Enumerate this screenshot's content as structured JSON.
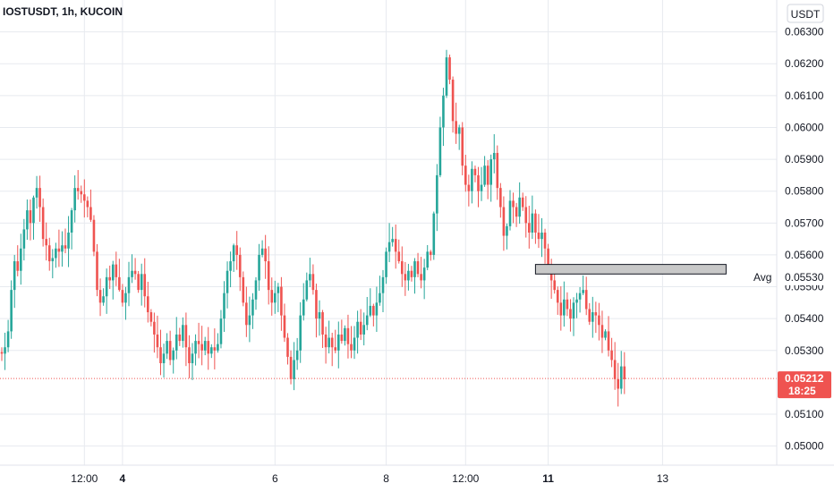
{
  "chart_data": {
    "type": "candlestick",
    "title": "IOSTUSDT, 1h, KUCOIN",
    "currency": "USDT",
    "ylim": [
      0.0494,
      0.064
    ],
    "y_ticks": [
      "0.06300",
      "0.06200",
      "0.06100",
      "0.06000",
      "0.05900",
      "0.05800",
      "0.05700",
      "0.05600",
      "0.05500",
      "0.05400",
      "0.05300",
      "0.05100",
      "0.05000"
    ],
    "x_ticks": [
      {
        "label": "12:00",
        "bold": false,
        "index": 26
      },
      {
        "label": "4",
        "bold": true,
        "index": 38
      },
      {
        "label": "6",
        "bold": false,
        "index": 86
      },
      {
        "label": "8",
        "bold": false,
        "index": 121
      },
      {
        "label": "12:00",
        "bold": false,
        "index": 146
      },
      {
        "label": "11",
        "bold": true,
        "index": 172
      },
      {
        "label": "13",
        "bold": false,
        "index": 208
      }
    ],
    "colors": {
      "up": "#26a69a",
      "down": "#ef5350",
      "grid": "#e7eaef",
      "price_line": "#ef5350",
      "avg_box": "#9e9e9e"
    },
    "closes": [
      0.0529,
      0.0531,
      0.0536,
      0.0549,
      0.0558,
      0.0555,
      0.0562,
      0.0568,
      0.0574,
      0.057,
      0.0578,
      0.0581,
      0.0575,
      0.0565,
      0.0563,
      0.0558,
      0.0559,
      0.0562,
      0.0561,
      0.0563,
      0.0562,
      0.0567,
      0.0574,
      0.0581,
      0.058,
      0.0579,
      0.0577,
      0.0575,
      0.0571,
      0.0561,
      0.0549,
      0.0545,
      0.0547,
      0.0553,
      0.0552,
      0.0557,
      0.0553,
      0.0549,
      0.0545,
      0.0548,
      0.0553,
      0.0555,
      0.0554,
      0.0549,
      0.0554,
      0.0547,
      0.0542,
      0.0539,
      0.0535,
      0.0531,
      0.0526,
      0.0529,
      0.0533,
      0.0527,
      0.053,
      0.0535,
      0.0533,
      0.0538,
      0.0531,
      0.0526,
      0.0529,
      0.0533,
      0.0532,
      0.053,
      0.0533,
      0.0529,
      0.0531,
      0.053,
      0.0532,
      0.054,
      0.0548,
      0.0555,
      0.0558,
      0.0563,
      0.056,
      0.0553,
      0.0545,
      0.0538,
      0.0541,
      0.0546,
      0.0552,
      0.056,
      0.0562,
      0.0558,
      0.0549,
      0.0545,
      0.0548,
      0.055,
      0.0541,
      0.0534,
      0.0528,
      0.0521,
      0.0527,
      0.053,
      0.0541,
      0.0546,
      0.0552,
      0.0554,
      0.0549,
      0.054,
      0.0542,
      0.0535,
      0.0531,
      0.0534,
      0.0531,
      0.053,
      0.0535,
      0.0533,
      0.0537,
      0.0532,
      0.053,
      0.0534,
      0.0539,
      0.0535,
      0.0538,
      0.0541,
      0.0544,
      0.0541,
      0.0545,
      0.0548,
      0.0553,
      0.0561,
      0.0564,
      0.0565,
      0.0561,
      0.0558,
      0.0554,
      0.0552,
      0.0555,
      0.0553,
      0.0558,
      0.0554,
      0.0552,
      0.0556,
      0.0561,
      0.056,
      0.0573,
      0.0585,
      0.06,
      0.061,
      0.0622,
      0.0615,
      0.0602,
      0.0598,
      0.06,
      0.0588,
      0.0582,
      0.058,
      0.0587,
      0.0585,
      0.058,
      0.0582,
      0.0588,
      0.0582,
      0.059,
      0.0592,
      0.0581,
      0.0575,
      0.0566,
      0.0569,
      0.0577,
      0.0575,
      0.0572,
      0.0578,
      0.0575,
      0.057,
      0.0567,
      0.0573,
      0.0567,
      0.0565,
      0.0567,
      0.0562,
      0.0556,
      0.0552,
      0.0549,
      0.0545,
      0.0541,
      0.0546,
      0.0543,
      0.054,
      0.0545,
      0.0546,
      0.0548,
      0.0549,
      0.0543,
      0.0539,
      0.0542,
      0.0541,
      0.0538,
      0.0534,
      0.0536,
      0.053,
      0.0527,
      0.0521,
      0.0518,
      0.0525,
      0.0521
    ],
    "last_price": "0.05212",
    "countdown": "18:25",
    "avg_label": "Avg",
    "avg_price": "0.05530",
    "avg_box": {
      "x0_index": 168,
      "x1_index": 228,
      "y_top": 0.0557,
      "y_bottom": 0.0554
    }
  }
}
